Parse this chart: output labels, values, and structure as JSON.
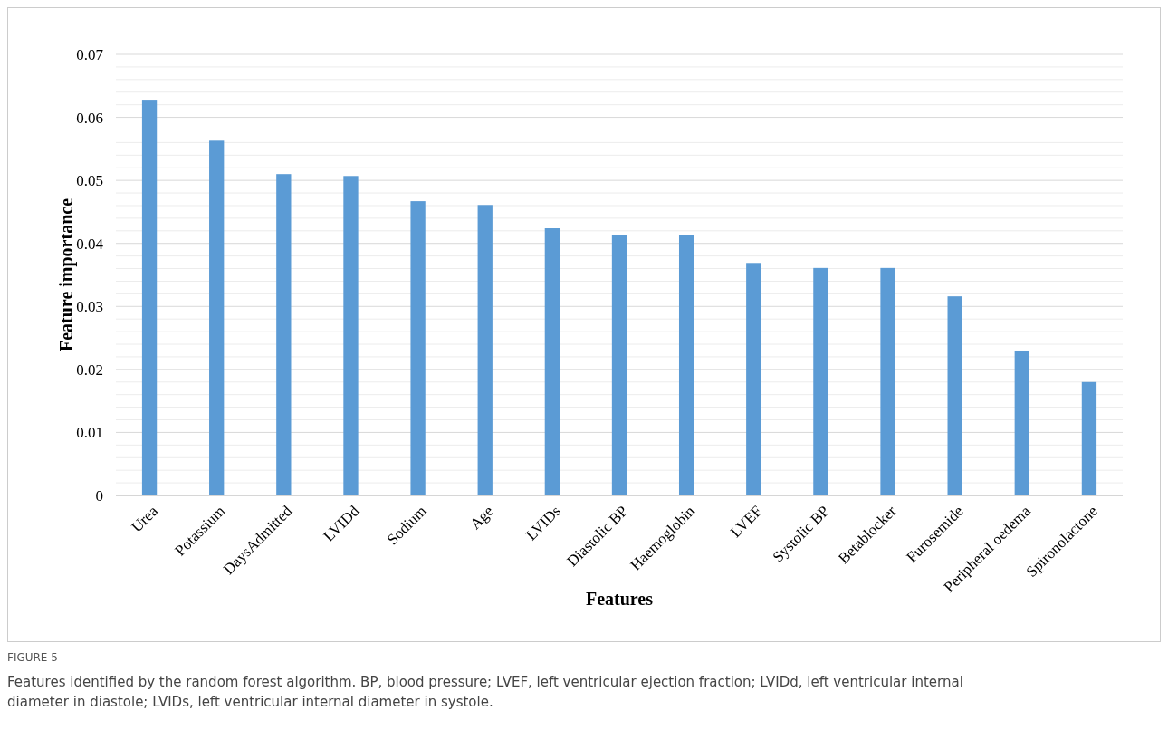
{
  "chart_data": {
    "type": "bar",
    "xlabel": "Features",
    "ylabel": "Feature importance",
    "categories": [
      "Urea",
      "Potassium",
      "DaysAdmitted",
      "LVIDd",
      "Sodium",
      "Age",
      "LVIDs",
      "Diastolic BP",
      "Haemoglobin",
      "LVEF",
      "Systolic BP",
      "Betablocker",
      "Furosemide",
      "Peripheral oedema",
      "Spironolactone"
    ],
    "values": [
      0.0628,
      0.0563,
      0.051,
      0.0507,
      0.0467,
      0.0461,
      0.0424,
      0.0413,
      0.0413,
      0.0369,
      0.0361,
      0.0361,
      0.0316,
      0.023,
      0.018
    ],
    "color": "#5b9bd5",
    "ylim": [
      0,
      0.07
    ],
    "yticks": [
      {
        "value": 0,
        "label": "0"
      },
      {
        "value": 0.002,
        "label": null
      },
      {
        "value": 0.004,
        "label": null
      },
      {
        "value": 0.006,
        "label": null
      },
      {
        "value": 0.008,
        "label": null
      },
      {
        "value": 0.01,
        "label": "0.01"
      },
      {
        "value": 0.012,
        "label": null
      },
      {
        "value": 0.014,
        "label": null
      },
      {
        "value": 0.016,
        "label": null
      },
      {
        "value": 0.018,
        "label": null
      },
      {
        "value": 0.02,
        "label": "0.02"
      },
      {
        "value": 0.022,
        "label": null
      },
      {
        "value": 0.024,
        "label": null
      },
      {
        "value": 0.026,
        "label": null
      },
      {
        "value": 0.028,
        "label": null
      },
      {
        "value": 0.03,
        "label": "0.03"
      },
      {
        "value": 0.032,
        "label": null
      },
      {
        "value": 0.034,
        "label": null
      },
      {
        "value": 0.036,
        "label": null
      },
      {
        "value": 0.038,
        "label": null
      },
      {
        "value": 0.04,
        "label": "0.04"
      },
      {
        "value": 0.042,
        "label": null
      },
      {
        "value": 0.044,
        "label": null
      },
      {
        "value": 0.046,
        "label": null
      },
      {
        "value": 0.048,
        "label": null
      },
      {
        "value": 0.05,
        "label": "0.05"
      },
      {
        "value": 0.052,
        "label": null
      },
      {
        "value": 0.054,
        "label": null
      },
      {
        "value": 0.056,
        "label": null
      },
      {
        "value": 0.058,
        "label": null
      },
      {
        "value": 0.06,
        "label": "0.06"
      },
      {
        "value": 0.062,
        "label": null
      },
      {
        "value": 0.064,
        "label": null
      },
      {
        "value": 0.066,
        "label": null
      },
      {
        "value": 0.068,
        "label": null
      },
      {
        "value": 0.07,
        "label": "0.07"
      }
    ],
    "grid": true,
    "annotations": [
      "FIGURE 5",
      "Features identified by the random forest algorithm. BP, blood pressure; LVEF, left ventricular ejection fraction; LVIDd, left ventricular internal diameter in diastole; LVIDs, left ventricular internal diameter in systole."
    ]
  }
}
